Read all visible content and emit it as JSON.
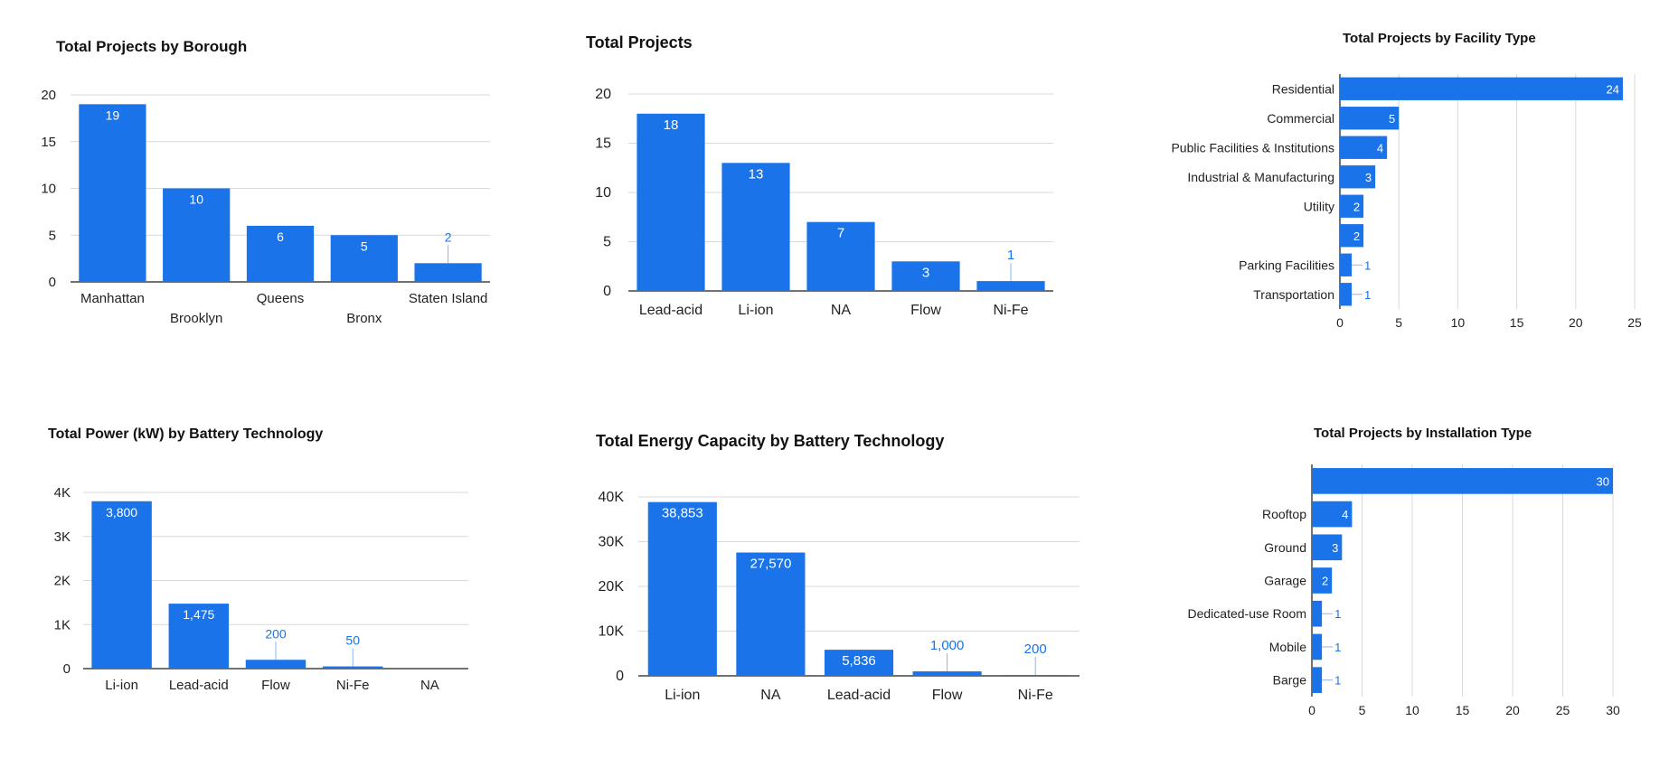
{
  "colors": {
    "bar": "#1a73e8",
    "grid": "#d9d9d9",
    "axis": "#444444",
    "outside_label": "#1a73e8",
    "inside_label": "#ffffff",
    "tick": "#222222"
  },
  "chart_data": [
    {
      "type": "bar",
      "title": "Total Projects by Borough",
      "categories": [
        "Manhattan",
        "Brooklyn",
        "Queens",
        "Bronx",
        "Staten Island"
      ],
      "values": [
        19,
        10,
        6,
        5,
        2
      ],
      "ylim": [
        0,
        20
      ],
      "yticks": [
        "0",
        "5",
        "10",
        "15",
        "20"
      ],
      "grid": true
    },
    {
      "type": "bar",
      "title": "Total Projects",
      "categories": [
        "Lead-acid",
        "Li-ion",
        "NA",
        "Flow",
        "Ni-Fe"
      ],
      "values": [
        18,
        13,
        7,
        3,
        1
      ],
      "ylim": [
        0,
        20
      ],
      "yticks": [
        "0",
        "5",
        "10",
        "15",
        "20"
      ],
      "grid": true
    },
    {
      "type": "bar",
      "orientation": "horizontal",
      "title": "Total Projects by Facility Type",
      "categories": [
        "Residential",
        "Commercial",
        "Public Facilities & Institutions",
        "Industrial & Manufacturing",
        "Utility",
        "",
        "Parking Facilities",
        "Transportation"
      ],
      "values": [
        24,
        5,
        4,
        3,
        2,
        2,
        1,
        1
      ],
      "xlim": [
        0,
        25
      ],
      "xticks": [
        "0",
        "5",
        "10",
        "15",
        "20",
        "25"
      ],
      "grid": true
    },
    {
      "type": "bar",
      "title": "Total Power (kW) by Battery Technology",
      "categories": [
        "Li-ion",
        "Lead-acid",
        "Flow",
        "Ni-Fe",
        "NA"
      ],
      "values": [
        3800,
        1475,
        200,
        50,
        0
      ],
      "value_labels": [
        "3,800",
        "1,475",
        "200",
        "50",
        ""
      ],
      "ylim": [
        0,
        4000
      ],
      "yticks": [
        "0",
        "1K",
        "2K",
        "3K",
        "4K"
      ],
      "grid": true
    },
    {
      "type": "bar",
      "title": "Total Energy Capacity by Battery Technology",
      "categories": [
        "Li-ion",
        "NA",
        "Lead-acid",
        "Flow",
        "Ni-Fe"
      ],
      "values": [
        38853,
        27570,
        5836,
        1000,
        200
      ],
      "value_labels": [
        "38,853",
        "27,570",
        "5,836",
        "1,000",
        "200"
      ],
      "ylim": [
        0,
        40000
      ],
      "yticks": [
        "0",
        "10K",
        "20K",
        "30K",
        "40K"
      ],
      "grid": true
    },
    {
      "type": "bar",
      "orientation": "horizontal",
      "title": "Total Projects by Installation Type",
      "categories": [
        "",
        "Rooftop",
        "Ground",
        "Garage",
        "Dedicated-use Room",
        "Mobile",
        "Barge"
      ],
      "values": [
        30,
        4,
        3,
        2,
        1,
        1,
        1
      ],
      "xlim": [
        0,
        30
      ],
      "xticks": [
        "0",
        "5",
        "10",
        "15",
        "20",
        "25",
        "30"
      ],
      "grid": true
    }
  ]
}
